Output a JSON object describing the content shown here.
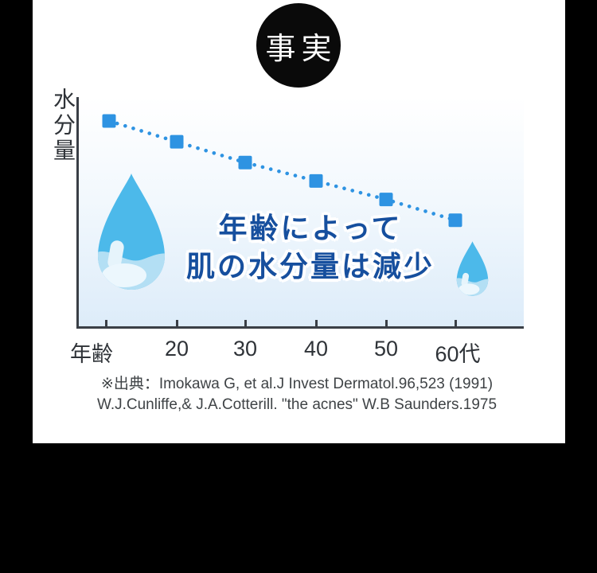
{
  "badge": {
    "label": "事実"
  },
  "chart": {
    "y_axis_label": "水分量",
    "headline_line1": "年齢によって",
    "headline_line2": "肌の水分量は減少"
  },
  "chart_data": {
    "type": "line",
    "style": "dotted connector with square markers, declining left to right",
    "categories": [
      "年齢",
      "20",
      "30",
      "40",
      "50",
      "60代"
    ],
    "values": [
      90,
      81,
      72,
      64,
      56,
      47
    ],
    "values_estimated": true,
    "title": "年齢によって肌の水分量は減少",
    "xlabel": "年齢",
    "ylabel": "水分量",
    "ylim": [
      0,
      100
    ],
    "legend": false,
    "grid": false
  },
  "citation": {
    "line1": "※出典：Imokawa G, et al.J Invest Dermatol.96,523 (1991)",
    "line2": "W.J.Cunliffe,& J.A.Cotterill. \"the acnes\" W.B Saunders.1975"
  },
  "colors": {
    "point_blue": "#2e93e2",
    "headline_blue": "#164f9e",
    "plot_gradient_top": "#ffffff",
    "plot_gradient_bottom": "#ddecf9",
    "axis": "#3a3f46",
    "badge_bg": "#0a0a0a",
    "badge_text": "#ffffff",
    "droplet_body": "#4cb9ea",
    "droplet_light": "#b3dff4",
    "outer_background": "#000000",
    "panel_background": "#ffffff"
  }
}
